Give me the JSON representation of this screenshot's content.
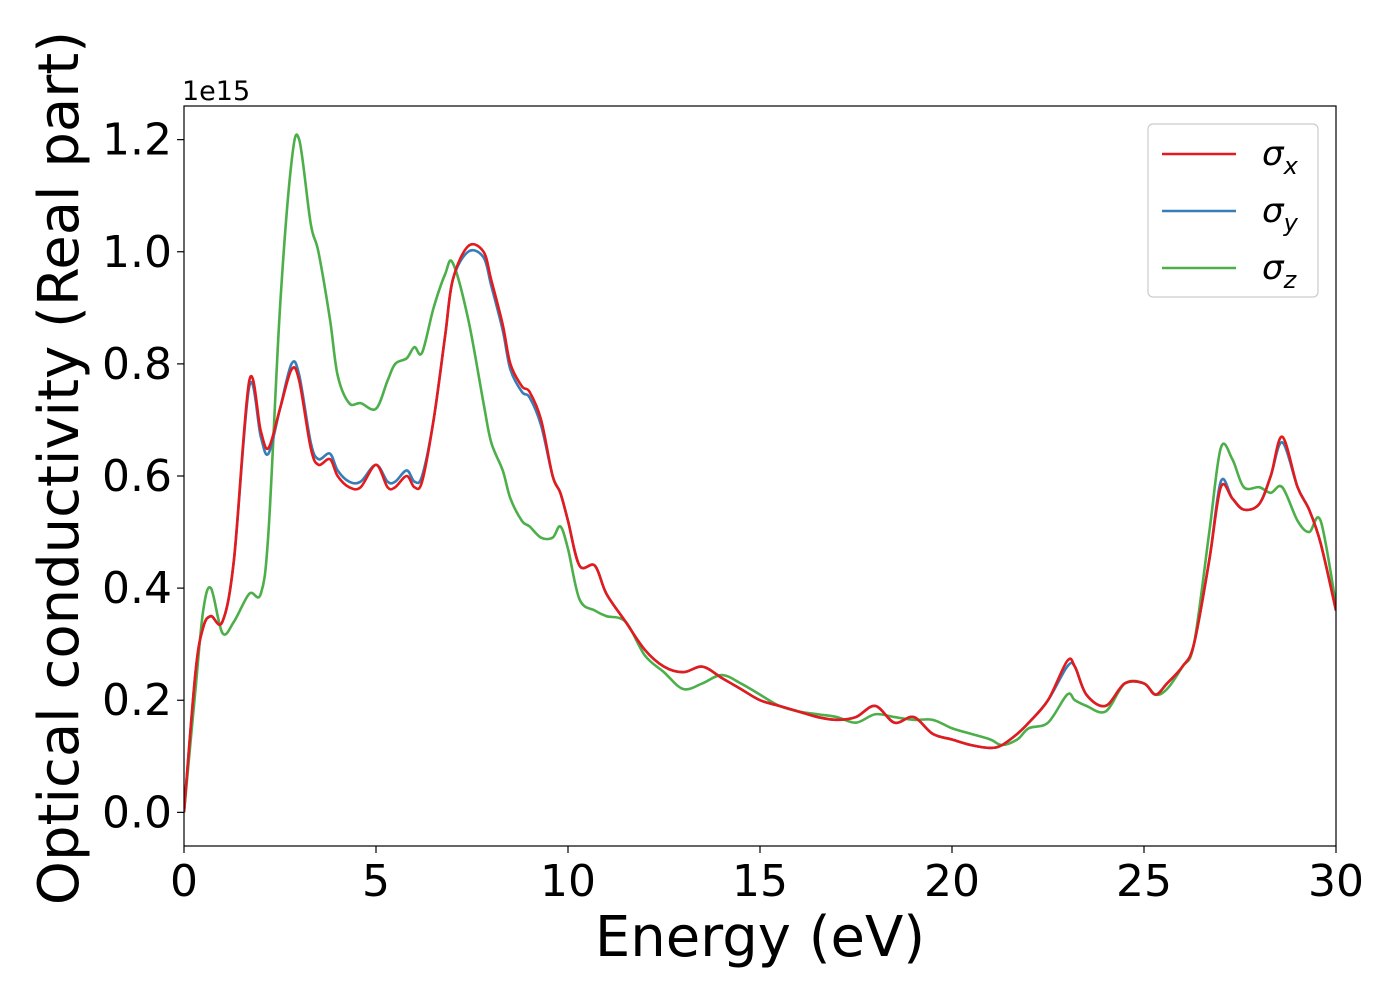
{
  "chart_data": {
    "type": "line",
    "xlabel": "Energy (eV)",
    "ylabel": "Optical conductivity (Real part)",
    "y_offset_label": "1e15",
    "xlim": [
      0,
      30
    ],
    "ylim": [
      -0.06,
      1.26
    ],
    "x_ticks": [
      0,
      5,
      10,
      15,
      20,
      25,
      30
    ],
    "x_tick_labels": [
      "0",
      "5",
      "10",
      "15",
      "20",
      "25",
      "30"
    ],
    "y_ticks": [
      0.0,
      0.2,
      0.4,
      0.6,
      0.8,
      1.0,
      1.2
    ],
    "y_tick_labels": [
      "0.0",
      "0.2",
      "0.4",
      "0.6",
      "0.8",
      "1.0",
      "1.2"
    ],
    "grid": false,
    "legend_position": "upper-right",
    "series": [
      {
        "name": "σx",
        "symbol": "σ",
        "subscript": "x",
        "color": "#e41a1c",
        "x": [
          0,
          0.3,
          0.5,
          0.7,
          1.0,
          1.3,
          1.7,
          2.0,
          2.2,
          2.5,
          2.8,
          3.0,
          3.3,
          3.5,
          3.8,
          4.0,
          4.3,
          4.6,
          5.0,
          5.3,
          5.5,
          5.8,
          6.0,
          6.2,
          6.5,
          6.8,
          7.0,
          7.4,
          7.8,
          8.0,
          8.3,
          8.5,
          8.8,
          9.0,
          9.3,
          9.6,
          9.8,
          10.0,
          10.3,
          10.7,
          11.0,
          11.5,
          12.0,
          12.5,
          13.0,
          13.5,
          14.0,
          14.5,
          15.0,
          15.5,
          16.0,
          16.5,
          17.0,
          17.5,
          18.0,
          18.5,
          19.0,
          19.5,
          20.0,
          20.5,
          21.0,
          21.3,
          21.7,
          22.0,
          22.5,
          23.0,
          23.2,
          23.5,
          24.0,
          24.5,
          25.0,
          25.3,
          25.6,
          26.0,
          26.3,
          26.7,
          27.0,
          27.3,
          27.6,
          28.0,
          28.3,
          28.6,
          29.0,
          29.3,
          29.6,
          30.0
        ],
        "y": [
          0.0,
          0.25,
          0.33,
          0.35,
          0.34,
          0.45,
          0.77,
          0.68,
          0.65,
          0.72,
          0.79,
          0.77,
          0.65,
          0.62,
          0.63,
          0.6,
          0.58,
          0.58,
          0.62,
          0.58,
          0.58,
          0.6,
          0.58,
          0.59,
          0.7,
          0.85,
          0.95,
          1.01,
          1.0,
          0.95,
          0.87,
          0.8,
          0.76,
          0.75,
          0.7,
          0.6,
          0.57,
          0.52,
          0.44,
          0.44,
          0.39,
          0.34,
          0.29,
          0.26,
          0.25,
          0.26,
          0.24,
          0.22,
          0.2,
          0.19,
          0.18,
          0.17,
          0.165,
          0.17,
          0.19,
          0.16,
          0.17,
          0.14,
          0.13,
          0.12,
          0.115,
          0.12,
          0.14,
          0.16,
          0.2,
          0.27,
          0.26,
          0.21,
          0.19,
          0.23,
          0.23,
          0.21,
          0.23,
          0.26,
          0.3,
          0.45,
          0.58,
          0.56,
          0.54,
          0.55,
          0.6,
          0.67,
          0.58,
          0.54,
          0.48,
          0.36
        ]
      },
      {
        "name": "σy",
        "symbol": "σ",
        "subscript": "y",
        "color": "#377eb8",
        "x": [
          0,
          0.3,
          0.5,
          0.7,
          1.0,
          1.3,
          1.7,
          2.0,
          2.2,
          2.5,
          2.8,
          3.0,
          3.3,
          3.5,
          3.8,
          4.0,
          4.3,
          4.6,
          5.0,
          5.3,
          5.5,
          5.8,
          6.0,
          6.2,
          6.5,
          6.8,
          7.0,
          7.4,
          7.8,
          8.0,
          8.3,
          8.5,
          8.8,
          9.0,
          9.3,
          9.6,
          9.8,
          10.0,
          10.3,
          10.7,
          11.0,
          11.5,
          12.0,
          12.5,
          13.0,
          13.5,
          14.0,
          14.5,
          15.0,
          15.5,
          16.0,
          16.5,
          17.0,
          17.5,
          18.0,
          18.5,
          19.0,
          19.5,
          20.0,
          20.5,
          21.0,
          21.3,
          21.7,
          22.0,
          22.5,
          23.0,
          23.2,
          23.5,
          24.0,
          24.5,
          25.0,
          25.3,
          25.6,
          26.0,
          26.3,
          26.7,
          27.0,
          27.3,
          27.6,
          28.0,
          28.3,
          28.6,
          29.0,
          29.3,
          29.6,
          30.0
        ],
        "y": [
          0.0,
          0.25,
          0.33,
          0.35,
          0.34,
          0.45,
          0.76,
          0.67,
          0.64,
          0.72,
          0.8,
          0.78,
          0.66,
          0.63,
          0.64,
          0.61,
          0.59,
          0.59,
          0.62,
          0.59,
          0.59,
          0.61,
          0.59,
          0.6,
          0.7,
          0.85,
          0.95,
          1.0,
          0.99,
          0.94,
          0.86,
          0.79,
          0.75,
          0.74,
          0.69,
          0.6,
          0.57,
          0.52,
          0.44,
          0.44,
          0.39,
          0.34,
          0.29,
          0.26,
          0.25,
          0.26,
          0.24,
          0.22,
          0.2,
          0.19,
          0.18,
          0.17,
          0.165,
          0.17,
          0.19,
          0.16,
          0.17,
          0.14,
          0.13,
          0.12,
          0.115,
          0.12,
          0.14,
          0.16,
          0.2,
          0.26,
          0.26,
          0.21,
          0.19,
          0.23,
          0.23,
          0.21,
          0.23,
          0.26,
          0.3,
          0.45,
          0.59,
          0.56,
          0.54,
          0.55,
          0.6,
          0.66,
          0.58,
          0.54,
          0.48,
          0.36
        ]
      },
      {
        "name": "σz",
        "symbol": "σ",
        "subscript": "z",
        "color": "#4daf4a",
        "x": [
          0,
          0.3,
          0.5,
          0.7,
          1.0,
          1.3,
          1.7,
          2.0,
          2.2,
          2.5,
          2.8,
          3.0,
          3.3,
          3.5,
          3.8,
          4.0,
          4.3,
          4.6,
          5.0,
          5.3,
          5.5,
          5.8,
          6.0,
          6.2,
          6.5,
          6.8,
          7.0,
          7.4,
          7.8,
          8.0,
          8.3,
          8.5,
          8.8,
          9.0,
          9.3,
          9.6,
          9.8,
          10.0,
          10.3,
          10.7,
          11.0,
          11.5,
          12.0,
          12.5,
          13.0,
          13.5,
          14.0,
          14.5,
          15.0,
          15.5,
          16.0,
          16.5,
          17.0,
          17.5,
          18.0,
          18.5,
          19.0,
          19.5,
          20.0,
          20.5,
          21.0,
          21.3,
          21.7,
          22.0,
          22.5,
          23.0,
          23.2,
          23.5,
          24.0,
          24.5,
          25.0,
          25.3,
          25.6,
          26.0,
          26.3,
          26.7,
          27.0,
          27.3,
          27.6,
          28.0,
          28.3,
          28.6,
          29.0,
          29.3,
          29.6,
          30.0
        ],
        "y": [
          0.0,
          0.22,
          0.36,
          0.4,
          0.32,
          0.34,
          0.39,
          0.39,
          0.5,
          0.9,
          1.16,
          1.2,
          1.05,
          1.0,
          0.88,
          0.78,
          0.73,
          0.73,
          0.72,
          0.77,
          0.8,
          0.81,
          0.83,
          0.82,
          0.9,
          0.96,
          0.98,
          0.88,
          0.73,
          0.66,
          0.61,
          0.56,
          0.52,
          0.51,
          0.49,
          0.49,
          0.51,
          0.47,
          0.38,
          0.36,
          0.35,
          0.34,
          0.28,
          0.25,
          0.22,
          0.23,
          0.245,
          0.23,
          0.21,
          0.19,
          0.18,
          0.175,
          0.17,
          0.16,
          0.175,
          0.17,
          0.165,
          0.165,
          0.15,
          0.14,
          0.13,
          0.12,
          0.13,
          0.15,
          0.16,
          0.21,
          0.2,
          0.19,
          0.18,
          0.23,
          0.23,
          0.21,
          0.22,
          0.26,
          0.3,
          0.5,
          0.65,
          0.63,
          0.58,
          0.58,
          0.57,
          0.58,
          0.52,
          0.5,
          0.52,
          0.37
        ]
      }
    ]
  }
}
